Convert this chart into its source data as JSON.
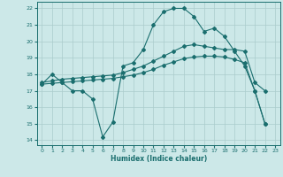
{
  "xlabel": "Humidex (Indice chaleur)",
  "background_color": "#cce8e8",
  "grid_color": "#aacccc",
  "line_color": "#1a6e6e",
  "xlim": [
    -0.5,
    23.5
  ],
  "ylim": [
    13.7,
    22.4
  ],
  "xticks": [
    0,
    1,
    2,
    3,
    4,
    5,
    6,
    7,
    8,
    9,
    10,
    11,
    12,
    13,
    14,
    15,
    16,
    17,
    18,
    19,
    20,
    21,
    22,
    23
  ],
  "yticks": [
    14,
    15,
    16,
    17,
    18,
    19,
    20,
    21,
    22
  ],
  "line1_x": [
    0,
    1,
    2,
    3,
    4,
    5,
    6,
    7,
    8,
    9,
    10,
    11,
    12,
    13,
    14,
    15,
    16,
    17,
    18,
    19,
    20,
    21,
    22
  ],
  "line1_y": [
    17.4,
    18.0,
    17.5,
    17.0,
    17.0,
    16.5,
    14.2,
    15.1,
    18.5,
    18.7,
    19.5,
    21.0,
    21.8,
    22.0,
    22.0,
    21.5,
    20.6,
    20.8,
    20.3,
    19.4,
    18.5,
    17.0,
    15.0
  ],
  "line2_x": [
    0,
    1,
    2,
    3,
    4,
    5,
    6,
    7,
    8,
    9,
    10,
    11,
    12,
    13,
    14,
    15,
    16,
    17,
    18,
    19,
    20,
    21,
    22
  ],
  "line2_y": [
    17.5,
    17.6,
    17.7,
    17.75,
    17.8,
    17.85,
    17.9,
    17.95,
    18.1,
    18.3,
    18.5,
    18.8,
    19.1,
    19.4,
    19.7,
    19.8,
    19.7,
    19.6,
    19.5,
    19.5,
    19.4,
    17.5,
    17.0
  ],
  "line3_x": [
    0,
    1,
    2,
    3,
    4,
    5,
    6,
    7,
    8,
    9,
    10,
    11,
    12,
    13,
    14,
    15,
    16,
    17,
    18,
    19,
    20,
    21,
    22
  ],
  "line3_y": [
    17.4,
    17.45,
    17.5,
    17.55,
    17.6,
    17.65,
    17.7,
    17.75,
    17.85,
    17.95,
    18.1,
    18.3,
    18.55,
    18.75,
    18.95,
    19.05,
    19.1,
    19.1,
    19.05,
    18.9,
    18.7,
    17.0,
    15.0
  ]
}
